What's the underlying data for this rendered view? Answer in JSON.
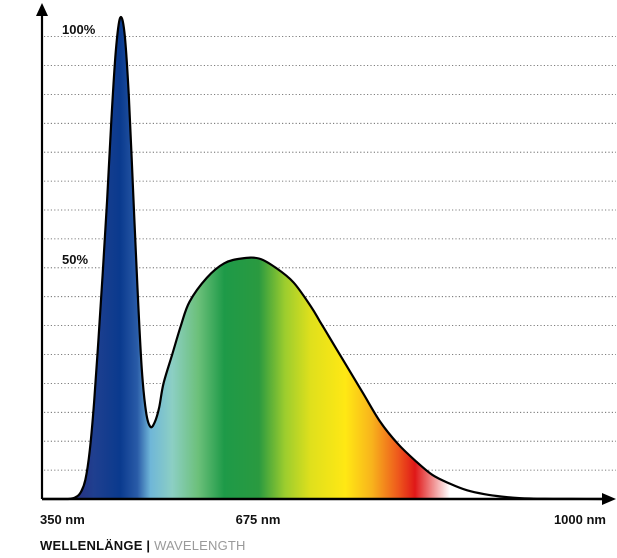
{
  "chart_data": {
    "type": "area",
    "title": "",
    "ylabel": "",
    "xlabel_de": "WELLENLÄNGE",
    "xlabel_separator": "|",
    "xlabel_en": "WAVELENGTH",
    "x_ticks": [
      "350 nm",
      "675 nm",
      "1000 nm"
    ],
    "y_ticks": [
      "100%",
      "50%"
    ],
    "xlim": [
      350,
      1000
    ],
    "ylim": [
      0,
      100
    ],
    "grid": "dotted-horizontal",
    "series": [
      {
        "x": [
          350,
          380,
          390,
          395,
          400,
          405,
          410,
          415,
          420,
          425,
          430,
          435,
          440,
          445,
          450,
          455,
          460,
          465,
          470,
          475,
          480,
          485,
          490,
          500,
          510,
          520,
          540,
          560,
          580,
          600,
          620,
          640,
          660,
          670,
          680,
          690,
          700,
          720,
          740,
          760,
          780,
          800,
          820,
          840,
          860,
          880,
          900,
          930,
          960,
          1000
        ],
        "values": [
          0,
          0,
          0.5,
          1.5,
          4,
          10,
          20,
          33,
          47,
          62,
          79,
          93,
          100,
          97,
          84,
          64,
          44,
          27,
          18,
          15,
          16,
          19,
          24,
          30,
          36,
          41,
          46,
          49,
          50,
          50,
          48,
          45,
          40,
          37,
          34,
          31,
          28,
          22,
          16,
          11.5,
          8,
          5,
          3.2,
          1.8,
          1.0,
          0.5,
          0.2,
          0.05,
          0.02,
          0
        ]
      }
    ],
    "fill_gradient": [
      {
        "wavelength": 350,
        "color": "#3a1a6e"
      },
      {
        "wavelength": 410,
        "color": "#1f3f8f"
      },
      {
        "wavelength": 440,
        "color": "#0a3a8e"
      },
      {
        "wavelength": 460,
        "color": "#2a5ca8"
      },
      {
        "wavelength": 475,
        "color": "#6fb6d8"
      },
      {
        "wavelength": 500,
        "color": "#8ccfc4"
      },
      {
        "wavelength": 530,
        "color": "#6cc07a"
      },
      {
        "wavelength": 560,
        "color": "#1e9a48"
      },
      {
        "wavelength": 600,
        "color": "#2a9a40"
      },
      {
        "wavelength": 630,
        "color": "#9ccd2e"
      },
      {
        "wavelength": 660,
        "color": "#e0e01c"
      },
      {
        "wavelength": 700,
        "color": "#ffe814"
      },
      {
        "wavelength": 730,
        "color": "#f8b41c"
      },
      {
        "wavelength": 760,
        "color": "#ee5a1c"
      },
      {
        "wavelength": 780,
        "color": "#e01818"
      },
      {
        "wavelength": 820,
        "color": "#ffffff"
      }
    ]
  }
}
